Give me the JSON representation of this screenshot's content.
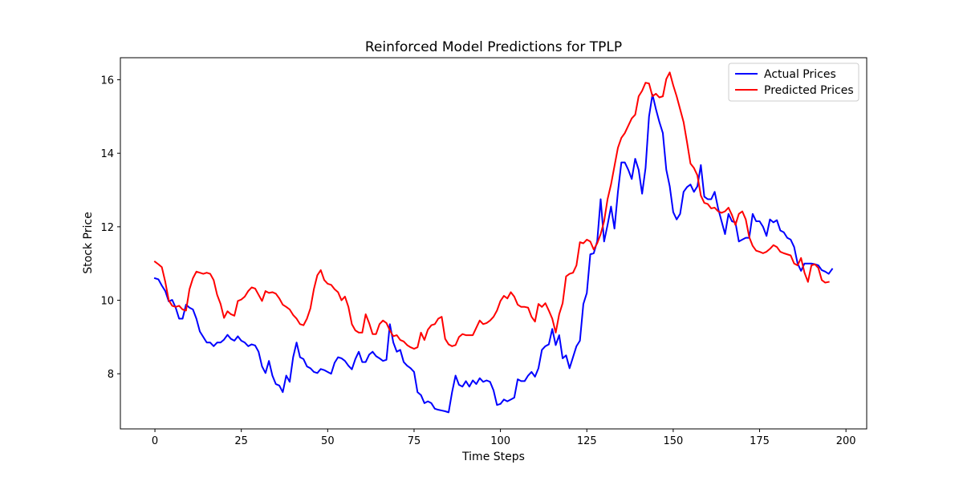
{
  "chart_data": {
    "type": "line",
    "title": "Reinforced Model Predictions for TPLP",
    "xlabel": "Time Steps",
    "ylabel": "Stock Price",
    "xlim": [
      -10,
      206
    ],
    "ylim": [
      6.5,
      16.6
    ],
    "xticks": [
      0,
      25,
      50,
      75,
      100,
      125,
      150,
      175,
      200
    ],
    "yticks": [
      8,
      10,
      12,
      14,
      16
    ],
    "grid": false,
    "legend_position": "top-right",
    "series": [
      {
        "name": "Actual Prices",
        "color": "#0000ff",
        "values": [
          10.6,
          10.57,
          10.4,
          10.25,
          9.97,
          10.01,
          9.8,
          9.5,
          9.5,
          9.88,
          9.8,
          9.75,
          9.5,
          9.15,
          9.0,
          8.85,
          8.85,
          8.75,
          8.85,
          8.85,
          8.93,
          9.06,
          8.95,
          8.9,
          9.02,
          8.9,
          8.85,
          8.75,
          8.8,
          8.77,
          8.6,
          8.2,
          8.02,
          8.35,
          7.95,
          7.72,
          7.68,
          7.5,
          7.95,
          7.78,
          8.45,
          8.85,
          8.45,
          8.4,
          8.2,
          8.15,
          8.05,
          8.02,
          8.13,
          8.1,
          8.05,
          8.0,
          8.3,
          8.45,
          8.42,
          8.35,
          8.22,
          8.12,
          8.4,
          8.6,
          8.32,
          8.32,
          8.52,
          8.6,
          8.48,
          8.42,
          8.35,
          8.38,
          9.35,
          8.85,
          8.6,
          8.65,
          8.32,
          8.22,
          8.15,
          8.05,
          7.5,
          7.42,
          7.2,
          7.25,
          7.2,
          7.05,
          7.02,
          7.0,
          6.98,
          6.95,
          7.5,
          7.95,
          7.7,
          7.65,
          7.8,
          7.65,
          7.82,
          7.72,
          7.88,
          7.78,
          7.82,
          7.78,
          7.55,
          7.15,
          7.18,
          7.3,
          7.25,
          7.3,
          7.35,
          7.85,
          7.8,
          7.8,
          7.95,
          8.05,
          7.92,
          8.15,
          8.65,
          8.75,
          8.8,
          9.22,
          8.78,
          9.05,
          8.42,
          8.5,
          8.15,
          8.45,
          8.75,
          8.9,
          9.9,
          10.2,
          11.25,
          11.28,
          11.6,
          12.75,
          11.6,
          12.05,
          12.55,
          11.95,
          12.95,
          13.75,
          13.75,
          13.55,
          13.3,
          13.85,
          13.55,
          12.9,
          13.6,
          15.0,
          15.6,
          15.2,
          14.85,
          14.55,
          13.55,
          13.1,
          12.4,
          12.2,
          12.35,
          12.95,
          13.08,
          13.15,
          12.95,
          13.1,
          13.68,
          12.82,
          12.75,
          12.75,
          12.95,
          12.5,
          12.15,
          11.8,
          12.35,
          12.15,
          12.12,
          11.6,
          11.65,
          11.7,
          11.7,
          12.35,
          12.15,
          12.15,
          12.0,
          11.75,
          12.2,
          12.12,
          12.18,
          11.9,
          11.85,
          11.7,
          11.65,
          11.45,
          11.0,
          10.8,
          11.0,
          11.0,
          11.0,
          10.98,
          10.95,
          10.82,
          10.78,
          10.72,
          10.85
        ]
      },
      {
        "name": "Predicted Prices",
        "color": "#ff0000",
        "values": [
          11.05,
          10.98,
          10.9,
          10.5,
          10.0,
          9.85,
          9.82,
          9.85,
          9.75,
          9.72,
          10.3,
          10.6,
          10.78,
          10.75,
          10.72,
          10.75,
          10.72,
          10.55,
          10.15,
          9.9,
          9.52,
          9.7,
          9.62,
          9.58,
          9.98,
          10.02,
          10.1,
          10.25,
          10.35,
          10.32,
          10.15,
          9.98,
          10.25,
          10.2,
          10.22,
          10.18,
          10.05,
          9.88,
          9.82,
          9.75,
          9.6,
          9.5,
          9.35,
          9.32,
          9.5,
          9.78,
          10.3,
          10.68,
          10.82,
          10.55,
          10.45,
          10.42,
          10.3,
          10.22,
          10.0,
          10.1,
          9.82,
          9.35,
          9.18,
          9.12,
          9.12,
          9.62,
          9.38,
          9.08,
          9.08,
          9.35,
          9.45,
          9.38,
          9.18,
          9.02,
          9.05,
          8.92,
          8.88,
          8.78,
          8.72,
          8.68,
          8.72,
          9.12,
          8.92,
          9.2,
          9.32,
          9.35,
          9.5,
          9.55,
          8.95,
          8.8,
          8.75,
          8.78,
          9.0,
          9.08,
          9.05,
          9.05,
          9.05,
          9.25,
          9.45,
          9.35,
          9.38,
          9.45,
          9.55,
          9.72,
          9.98,
          10.12,
          10.05,
          10.22,
          10.1,
          9.88,
          9.82,
          9.82,
          9.8,
          9.55,
          9.42,
          9.9,
          9.82,
          9.92,
          9.72,
          9.5,
          9.12,
          9.62,
          9.92,
          10.65,
          10.72,
          10.75,
          10.95,
          11.58,
          11.55,
          11.65,
          11.6,
          11.38,
          11.55,
          11.8,
          12.15,
          12.75,
          13.15,
          13.65,
          14.15,
          14.42,
          14.55,
          14.75,
          14.95,
          15.05,
          15.55,
          15.7,
          15.92,
          15.9,
          15.55,
          15.62,
          15.52,
          15.55,
          16.02,
          16.2,
          15.85,
          15.55,
          15.2,
          14.85,
          14.3,
          13.72,
          13.6,
          13.4,
          12.85,
          12.65,
          12.62,
          12.5,
          12.52,
          12.42,
          12.38,
          12.42,
          12.52,
          12.32,
          12.05,
          12.35,
          12.42,
          12.2,
          11.72,
          11.48,
          11.35,
          11.32,
          11.28,
          11.32,
          11.4,
          11.5,
          11.45,
          11.32,
          11.28,
          11.25,
          11.22,
          11.0,
          10.95,
          11.15,
          10.75,
          10.5,
          10.95,
          10.98,
          10.88,
          10.55,
          10.48,
          10.5
        ]
      }
    ]
  }
}
